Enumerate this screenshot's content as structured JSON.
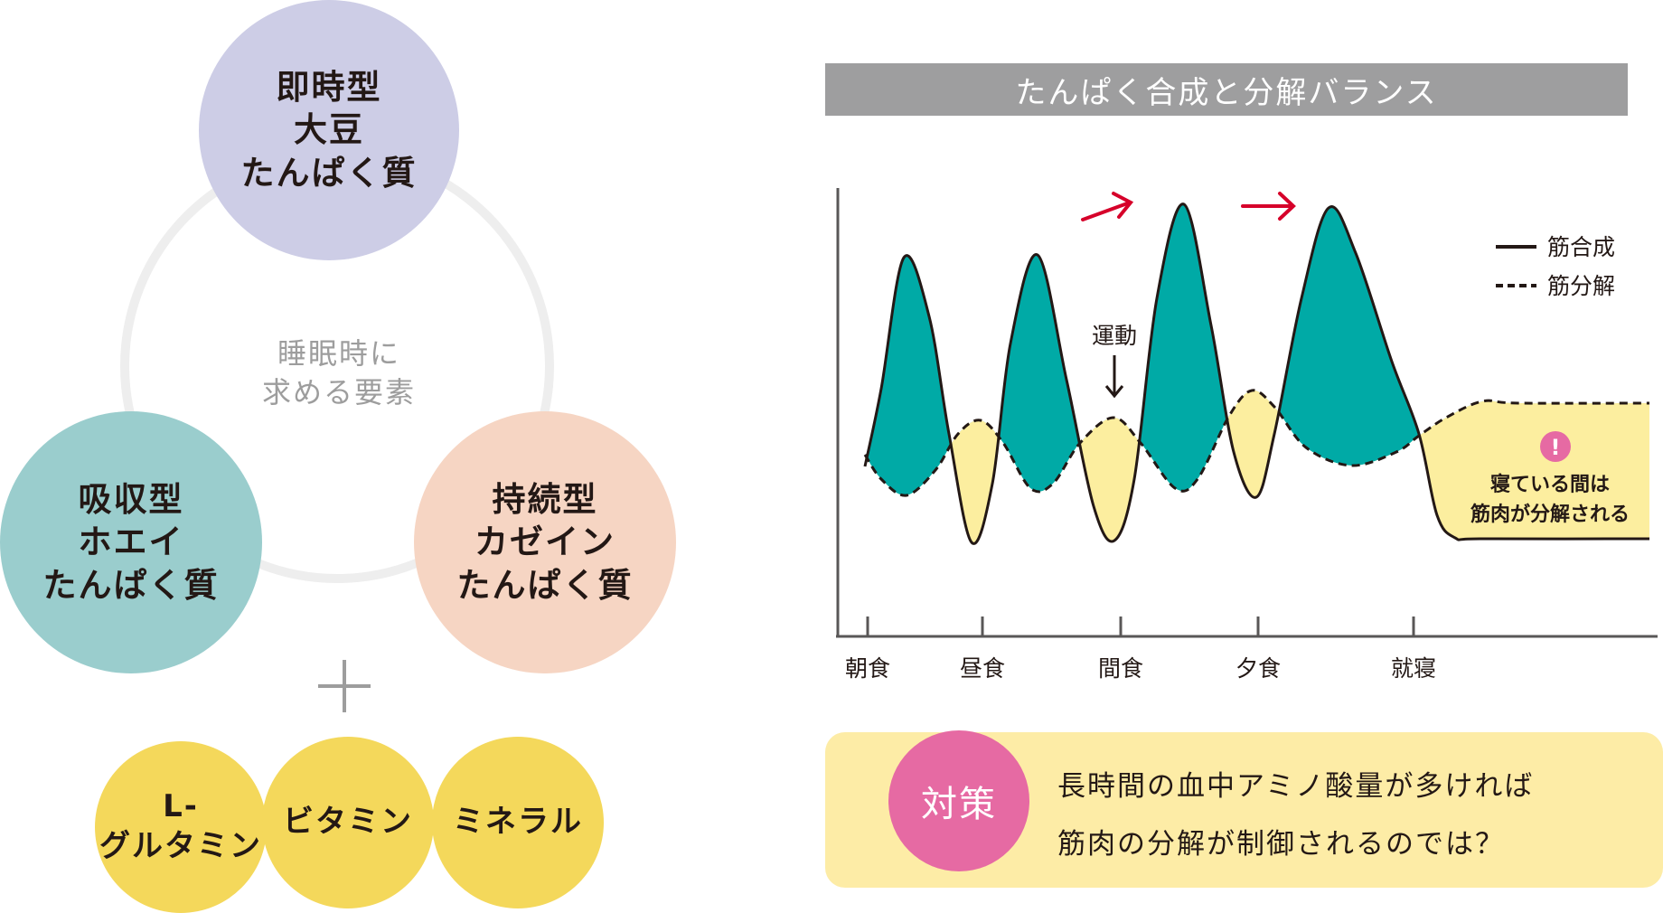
{
  "diagram": {
    "center": {
      "line1": "睡眠時に",
      "line2": "求める要素"
    },
    "circles": [
      {
        "lines": [
          "即時型",
          "大豆",
          "たんぱく質"
        ],
        "color": "#cdcde6"
      },
      {
        "lines": [
          "吸収型",
          "ホエイ",
          "たんぱく質"
        ],
        "color": "#9acdcd"
      },
      {
        "lines": [
          "持続型",
          "カゼイン",
          "たんぱく質"
        ],
        "color": "#f6d5c3"
      }
    ],
    "nutrients": [
      {
        "lines": [
          "L-",
          "グルタミン"
        ]
      },
      {
        "lines": [
          "ビタミン"
        ]
      },
      {
        "lines": [
          "ミネラル"
        ]
      }
    ],
    "nutrient_color": "#f4d85b"
  },
  "chart_data": {
    "type": "line",
    "title": "たんぱく合成と分解バランス",
    "categories": [
      "朝食",
      "昼食",
      "間食",
      "夕食",
      "就寝"
    ],
    "series": [
      {
        "name": "筋合成",
        "style": "solid"
      },
      {
        "name": "筋分解",
        "style": "dashed"
      }
    ],
    "annotation_exercise": "運動",
    "sleep_note": {
      "icon": "!",
      "line1": "寝ている間は",
      "line2": "筋肉が分解される"
    },
    "colors": {
      "synthesis_fill": "#00aaa6",
      "breakdown_fill": "#fcee9f",
      "arrow": "#d6002a",
      "alert": "#e66aa3"
    }
  },
  "countermeasure": {
    "badge": "対策",
    "line1": "長時間の血中アミノ酸量が多ければ",
    "line2": "筋肉の分解が制御されるのでは？"
  }
}
